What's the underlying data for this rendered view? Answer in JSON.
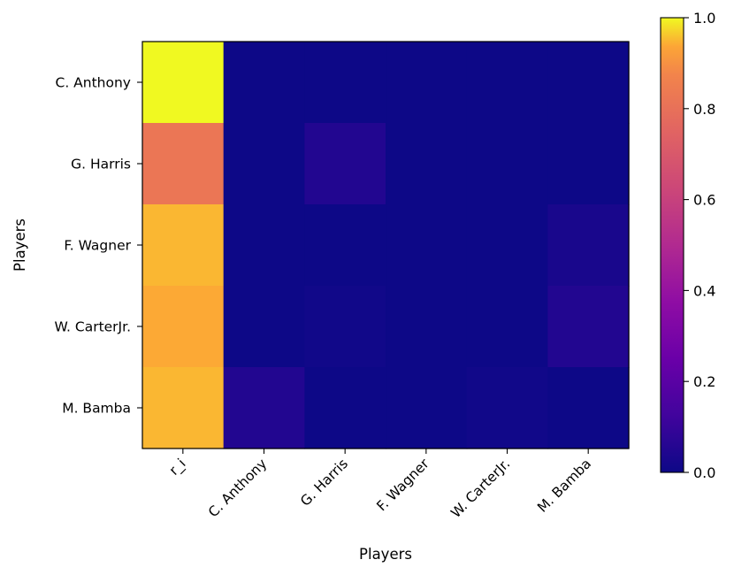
{
  "chart_data": {
    "type": "heatmap",
    "colormap": "plasma",
    "title": "",
    "xlabel": "Players",
    "ylabel": "Players",
    "x_categories": [
      "r_i",
      "C. Anthony",
      "G. Harris",
      "F. Wagner",
      "W. CarterJr.",
      "M. Bamba"
    ],
    "y_categories": [
      "C. Anthony",
      "G. Harris",
      "F. Wagner",
      "W. CarterJr.",
      "M. Bamba"
    ],
    "values": [
      [
        1.0,
        0.0,
        0.0,
        0.0,
        0.0,
        0.0
      ],
      [
        0.82,
        0.0,
        0.05,
        0.0,
        0.0,
        0.0
      ],
      [
        0.95,
        0.0,
        0.0,
        0.0,
        0.0,
        0.03
      ],
      [
        0.94,
        0.0,
        0.01,
        0.0,
        0.0,
        0.05
      ],
      [
        0.95,
        0.05,
        0.0,
        0.0,
        0.01,
        0.0
      ]
    ],
    "colorbar": {
      "range": [
        0.0,
        1.0
      ],
      "ticks": [
        0.0,
        0.2,
        0.4,
        0.6,
        0.8,
        1.0
      ],
      "tick_labels": [
        "0.0",
        "0.2",
        "0.4",
        "0.6",
        "0.8",
        "1.0"
      ]
    },
    "grid": false
  }
}
